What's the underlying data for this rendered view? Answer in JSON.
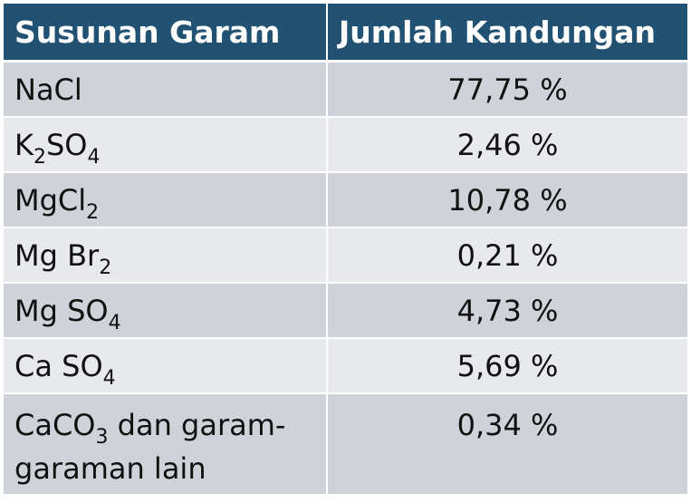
{
  "table": {
    "headers": [
      "Susunan Garam",
      "Jumlah Kandungan"
    ],
    "rows": [
      {
        "salt": {
          "parts": [
            {
              "t": "NaCl",
              "s": ""
            }
          ]
        },
        "value": "77,75 %"
      },
      {
        "salt": {
          "parts": [
            {
              "t": "K",
              "s": "2"
            },
            {
              "t": "SO",
              "s": "4"
            }
          ]
        },
        "value": "2,46 %"
      },
      {
        "salt": {
          "parts": [
            {
              "t": "MgCl",
              "s": "2"
            }
          ]
        },
        "value": "10,78 %"
      },
      {
        "salt": {
          "parts": [
            {
              "t": "Mg Br",
              "s": "2"
            }
          ]
        },
        "value": "0,21 %"
      },
      {
        "salt": {
          "parts": [
            {
              "t": "Mg SO",
              "s": "4"
            }
          ]
        },
        "value": "4,73 %"
      },
      {
        "salt": {
          "parts": [
            {
              "t": "Ca SO",
              "s": "4"
            }
          ]
        },
        "value": "5,69 %"
      },
      {
        "salt": {
          "parts": [
            {
              "t": "CaCO",
              "s": "3"
            },
            {
              "t": " dan garam-garaman lain",
              "s": ""
            }
          ]
        },
        "value": "0,34 %"
      }
    ]
  },
  "colors": {
    "header_bg": "#215273",
    "row_dark": "#cfd3d9",
    "row_light": "#e7e9ed"
  }
}
